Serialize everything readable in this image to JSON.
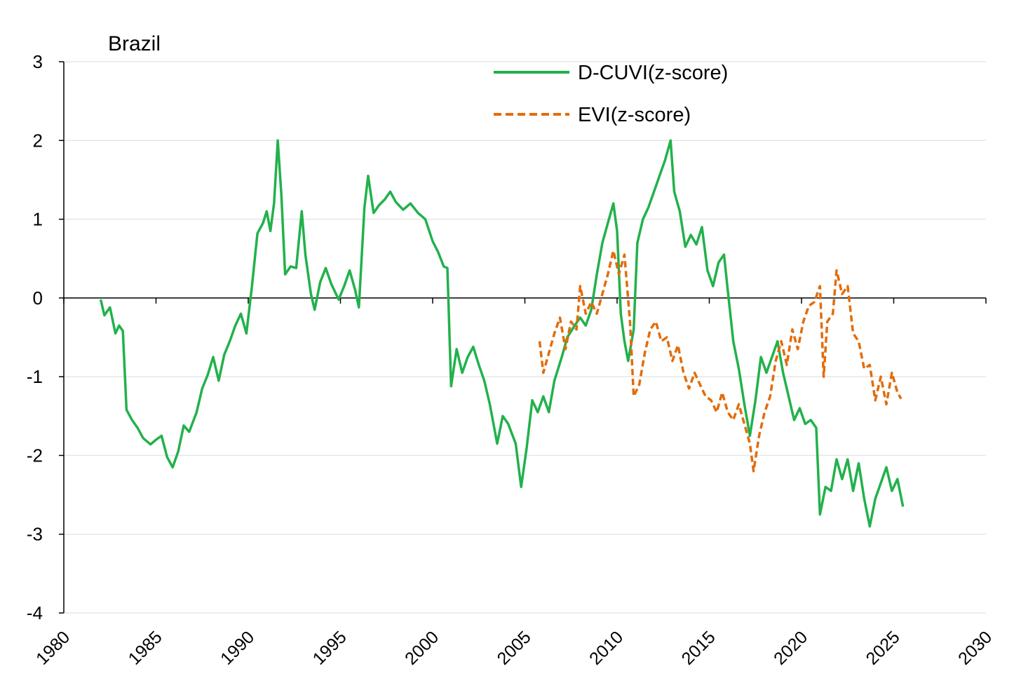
{
  "chart_data": {
    "type": "line",
    "title": "Brazil",
    "xlabel": "",
    "ylabel": "",
    "xlim": [
      1980,
      2030
    ],
    "ylim": [
      -4,
      3
    ],
    "xticks": [
      "1980",
      "1985",
      "1990",
      "1995",
      "2000",
      "2005",
      "2010",
      "2015",
      "2020",
      "2025",
      "2030"
    ],
    "yticks": [
      "3",
      "2",
      "1",
      "0",
      "-1",
      "-2",
      "-3",
      "-4"
    ],
    "grid": "horizontal",
    "legend_position": "top-center",
    "series": [
      {
        "name": "D-CUVI(z-score)",
        "color": "#22b14c",
        "style": "solid",
        "points": [
          [
            1982.0,
            -0.02
          ],
          [
            1982.2,
            -0.22
          ],
          [
            1982.5,
            -0.12
          ],
          [
            1982.8,
            -0.45
          ],
          [
            1983.0,
            -0.35
          ],
          [
            1983.2,
            -0.42
          ],
          [
            1983.4,
            -1.42
          ],
          [
            1983.7,
            -1.55
          ],
          [
            1984.0,
            -1.65
          ],
          [
            1984.3,
            -1.78
          ],
          [
            1984.7,
            -1.86
          ],
          [
            1985.0,
            -1.8
          ],
          [
            1985.3,
            -1.75
          ],
          [
            1985.6,
            -2.02
          ],
          [
            1985.9,
            -2.15
          ],
          [
            1986.2,
            -1.95
          ],
          [
            1986.5,
            -1.62
          ],
          [
            1986.8,
            -1.7
          ],
          [
            1987.2,
            -1.45
          ],
          [
            1987.5,
            -1.15
          ],
          [
            1987.8,
            -0.98
          ],
          [
            1988.1,
            -0.75
          ],
          [
            1988.4,
            -1.05
          ],
          [
            1988.7,
            -0.72
          ],
          [
            1989.0,
            -0.55
          ],
          [
            1989.3,
            -0.35
          ],
          [
            1989.6,
            -0.2
          ],
          [
            1989.9,
            -0.45
          ],
          [
            1990.2,
            0.15
          ],
          [
            1990.5,
            0.82
          ],
          [
            1990.8,
            0.95
          ],
          [
            1991.0,
            1.1
          ],
          [
            1991.2,
            0.85
          ],
          [
            1991.4,
            1.2
          ],
          [
            1991.6,
            2.0
          ],
          [
            1991.8,
            1.3
          ],
          [
            1992.0,
            0.3
          ],
          [
            1992.3,
            0.4
          ],
          [
            1992.6,
            0.38
          ],
          [
            1992.9,
            1.1
          ],
          [
            1993.1,
            0.55
          ],
          [
            1993.4,
            0.05
          ],
          [
            1993.6,
            -0.15
          ],
          [
            1993.9,
            0.2
          ],
          [
            1994.2,
            0.38
          ],
          [
            1994.5,
            0.18
          ],
          [
            1994.9,
            -0.02
          ],
          [
            1995.2,
            0.15
          ],
          [
            1995.5,
            0.35
          ],
          [
            1995.8,
            0.1
          ],
          [
            1996.0,
            -0.12
          ],
          [
            1996.3,
            1.15
          ],
          [
            1996.5,
            1.55
          ],
          [
            1996.8,
            1.08
          ],
          [
            1997.1,
            1.18
          ],
          [
            1997.4,
            1.25
          ],
          [
            1997.7,
            1.35
          ],
          [
            1998.0,
            1.22
          ],
          [
            1998.4,
            1.12
          ],
          [
            1998.8,
            1.2
          ],
          [
            1999.2,
            1.08
          ],
          [
            1999.6,
            1.0
          ],
          [
            2000.0,
            0.72
          ],
          [
            2000.3,
            0.58
          ],
          [
            2000.6,
            0.4
          ],
          [
            2000.8,
            0.38
          ],
          [
            2001.0,
            -1.12
          ],
          [
            2001.3,
            -0.65
          ],
          [
            2001.6,
            -0.95
          ],
          [
            2001.9,
            -0.75
          ],
          [
            2002.2,
            -0.62
          ],
          [
            2002.5,
            -0.85
          ],
          [
            2002.8,
            -1.05
          ],
          [
            2003.1,
            -1.35
          ],
          [
            2003.5,
            -1.85
          ],
          [
            2003.8,
            -1.5
          ],
          [
            2004.1,
            -1.6
          ],
          [
            2004.5,
            -1.85
          ],
          [
            2004.8,
            -2.4
          ],
          [
            2005.1,
            -1.9
          ],
          [
            2005.4,
            -1.3
          ],
          [
            2005.7,
            -1.45
          ],
          [
            2006.0,
            -1.25
          ],
          [
            2006.3,
            -1.45
          ],
          [
            2006.6,
            -1.05
          ],
          [
            2007.0,
            -0.75
          ],
          [
            2007.3,
            -0.5
          ],
          [
            2007.7,
            -0.35
          ],
          [
            2008.0,
            -0.25
          ],
          [
            2008.3,
            -0.35
          ],
          [
            2008.6,
            -0.15
          ],
          [
            2008.9,
            0.3
          ],
          [
            2009.2,
            0.7
          ],
          [
            2009.5,
            0.95
          ],
          [
            2009.8,
            1.2
          ],
          [
            2010.0,
            0.85
          ],
          [
            2010.2,
            -0.2
          ],
          [
            2010.4,
            -0.55
          ],
          [
            2010.6,
            -0.8
          ],
          [
            2010.9,
            -0.4
          ],
          [
            2011.1,
            0.7
          ],
          [
            2011.4,
            1.0
          ],
          [
            2011.7,
            1.15
          ],
          [
            2012.0,
            1.35
          ],
          [
            2012.3,
            1.55
          ],
          [
            2012.6,
            1.75
          ],
          [
            2012.9,
            2.0
          ],
          [
            2013.1,
            1.35
          ],
          [
            2013.4,
            1.1
          ],
          [
            2013.7,
            0.65
          ],
          [
            2014.0,
            0.8
          ],
          [
            2014.3,
            0.68
          ],
          [
            2014.6,
            0.9
          ],
          [
            2014.9,
            0.35
          ],
          [
            2015.2,
            0.15
          ],
          [
            2015.5,
            0.45
          ],
          [
            2015.8,
            0.55
          ],
          [
            2016.0,
            0.1
          ],
          [
            2016.3,
            -0.55
          ],
          [
            2016.6,
            -0.9
          ],
          [
            2016.9,
            -1.35
          ],
          [
            2017.2,
            -1.75
          ],
          [
            2017.5,
            -1.3
          ],
          [
            2017.8,
            -0.75
          ],
          [
            2018.1,
            -0.95
          ],
          [
            2018.4,
            -0.75
          ],
          [
            2018.7,
            -0.55
          ],
          [
            2019.0,
            -0.95
          ],
          [
            2019.3,
            -1.25
          ],
          [
            2019.6,
            -1.55
          ],
          [
            2019.9,
            -1.4
          ],
          [
            2020.2,
            -1.6
          ],
          [
            2020.5,
            -1.55
          ],
          [
            2020.8,
            -1.65
          ],
          [
            2021.0,
            -2.75
          ],
          [
            2021.3,
            -2.4
          ],
          [
            2021.6,
            -2.45
          ],
          [
            2021.9,
            -2.05
          ],
          [
            2022.2,
            -2.3
          ],
          [
            2022.5,
            -2.05
          ],
          [
            2022.8,
            -2.45
          ],
          [
            2023.1,
            -2.1
          ],
          [
            2023.4,
            -2.55
          ],
          [
            2023.7,
            -2.9
          ],
          [
            2024.0,
            -2.55
          ],
          [
            2024.3,
            -2.35
          ],
          [
            2024.6,
            -2.15
          ],
          [
            2024.9,
            -2.45
          ],
          [
            2025.2,
            -2.3
          ],
          [
            2025.5,
            -2.65
          ]
        ]
      },
      {
        "name": "EVI(z-score)",
        "color": "#e36c0a",
        "style": "dashed",
        "points": [
          [
            2005.8,
            -0.55
          ],
          [
            2006.0,
            -0.95
          ],
          [
            2006.3,
            -0.7
          ],
          [
            2006.6,
            -0.45
          ],
          [
            2006.9,
            -0.25
          ],
          [
            2007.2,
            -0.65
          ],
          [
            2007.5,
            -0.3
          ],
          [
            2007.8,
            -0.4
          ],
          [
            2008.0,
            0.15
          ],
          [
            2008.3,
            -0.2
          ],
          [
            2008.6,
            -0.05
          ],
          [
            2008.9,
            -0.2
          ],
          [
            2009.2,
            0.05
          ],
          [
            2009.5,
            0.3
          ],
          [
            2009.8,
            0.6
          ],
          [
            2010.1,
            0.3
          ],
          [
            2010.4,
            0.55
          ],
          [
            2010.7,
            -0.3
          ],
          [
            2010.9,
            -1.25
          ],
          [
            2011.2,
            -1.1
          ],
          [
            2011.5,
            -0.7
          ],
          [
            2011.8,
            -0.4
          ],
          [
            2012.1,
            -0.3
          ],
          [
            2012.4,
            -0.55
          ],
          [
            2012.7,
            -0.5
          ],
          [
            2013.0,
            -0.8
          ],
          [
            2013.3,
            -0.6
          ],
          [
            2013.6,
            -0.95
          ],
          [
            2013.9,
            -1.15
          ],
          [
            2014.2,
            -0.95
          ],
          [
            2014.5,
            -1.1
          ],
          [
            2014.8,
            -1.25
          ],
          [
            2015.1,
            -1.3
          ],
          [
            2015.4,
            -1.45
          ],
          [
            2015.7,
            -1.2
          ],
          [
            2016.0,
            -1.45
          ],
          [
            2016.3,
            -1.55
          ],
          [
            2016.6,
            -1.35
          ],
          [
            2016.9,
            -1.6
          ],
          [
            2017.2,
            -1.85
          ],
          [
            2017.4,
            -2.2
          ],
          [
            2017.7,
            -1.75
          ],
          [
            2018.0,
            -1.45
          ],
          [
            2018.3,
            -1.25
          ],
          [
            2018.6,
            -0.8
          ],
          [
            2018.9,
            -0.55
          ],
          [
            2019.2,
            -0.85
          ],
          [
            2019.5,
            -0.4
          ],
          [
            2019.8,
            -0.65
          ],
          [
            2020.1,
            -0.3
          ],
          [
            2020.4,
            -0.1
          ],
          [
            2020.7,
            -0.05
          ],
          [
            2021.0,
            0.15
          ],
          [
            2021.2,
            -1.0
          ],
          [
            2021.4,
            -0.3
          ],
          [
            2021.7,
            -0.2
          ],
          [
            2021.9,
            0.35
          ],
          [
            2022.2,
            0.05
          ],
          [
            2022.5,
            0.15
          ],
          [
            2022.8,
            -0.45
          ],
          [
            2023.1,
            -0.55
          ],
          [
            2023.4,
            -0.9
          ],
          [
            2023.7,
            -0.85
          ],
          [
            2024.0,
            -1.3
          ],
          [
            2024.3,
            -1.0
          ],
          [
            2024.6,
            -1.35
          ],
          [
            2024.9,
            -0.95
          ],
          [
            2025.2,
            -1.2
          ],
          [
            2025.4,
            -1.28
          ]
        ]
      }
    ]
  }
}
